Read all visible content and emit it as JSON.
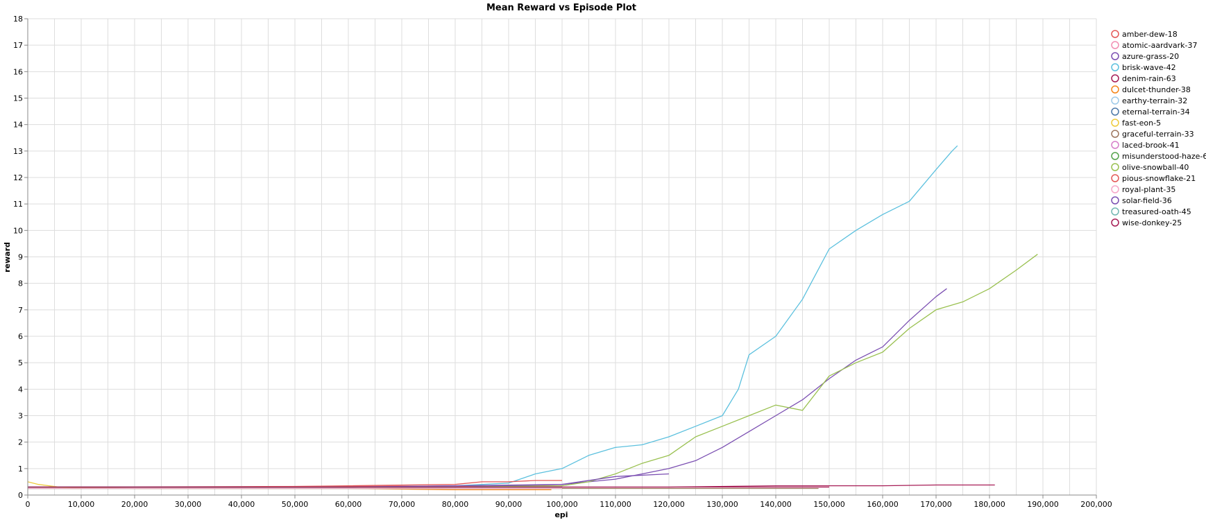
{
  "chart_data": {
    "type": "line",
    "title": "Mean Reward vs Episode Plot",
    "xlabel": "epi",
    "ylabel": "reward",
    "xlim": [
      0,
      200000
    ],
    "ylim": [
      0,
      18
    ],
    "x_ticks": [
      0,
      10000,
      20000,
      30000,
      40000,
      50000,
      60000,
      70000,
      80000,
      90000,
      100000,
      110000,
      120000,
      130000,
      140000,
      150000,
      160000,
      170000,
      180000,
      190000,
      200000
    ],
    "x_tick_labels": [
      "0",
      "10,000",
      "20,000",
      "30,000",
      "40,000",
      "50,000",
      "60,000",
      "70,000",
      "80,000",
      "90,000",
      "100,000",
      "110,000",
      "120,000",
      "130,000",
      "140,000",
      "150,000",
      "160,000",
      "170,000",
      "180,000",
      "190,000",
      "200,000"
    ],
    "y_ticks": [
      0,
      1,
      2,
      3,
      4,
      5,
      6,
      7,
      8,
      9,
      10,
      11,
      12,
      13,
      14,
      15,
      16,
      17,
      18
    ],
    "y_tick_labels": [
      "0",
      "1",
      "2",
      "3",
      "4",
      "5",
      "6",
      "7",
      "8",
      "9",
      "10",
      "11",
      "12",
      "13",
      "14",
      "15",
      "16",
      "17",
      "18"
    ],
    "grid": true,
    "legend_position": "right",
    "series": [
      {
        "name": "amber-dew-18",
        "color": "#e45756",
        "x": [
          0,
          100000
        ],
        "y": [
          0.3,
          0.35
        ]
      },
      {
        "name": "atomic-aardvark-37",
        "color": "#f28eb2",
        "x": [
          0,
          20000
        ],
        "y": [
          0.3,
          0.3
        ]
      },
      {
        "name": "azure-grass-20",
        "color": "#7b4fb2",
        "x": [
          0,
          20000,
          40000,
          60000,
          80000,
          90000,
          100000,
          105000,
          110000,
          115000,
          120000,
          125000,
          130000,
          135000,
          140000,
          145000,
          150000,
          155000,
          160000,
          165000,
          170000,
          172000
        ],
        "y": [
          0.3,
          0.3,
          0.3,
          0.3,
          0.3,
          0.35,
          0.4,
          0.5,
          0.6,
          0.8,
          1.0,
          1.3,
          1.8,
          2.4,
          3.0,
          3.6,
          4.4,
          5.1,
          5.6,
          6.6,
          7.5,
          7.8
        ]
      },
      {
        "name": "brisk-wave-42",
        "color": "#5bc0de",
        "x": [
          0,
          20000,
          40000,
          60000,
          80000,
          90000,
          95000,
          100000,
          105000,
          110000,
          115000,
          120000,
          125000,
          130000,
          133000,
          135000,
          140000,
          145000,
          150000,
          155000,
          160000,
          165000,
          170000,
          173000,
          174000
        ],
        "y": [
          0.3,
          0.3,
          0.3,
          0.3,
          0.35,
          0.45,
          0.8,
          1.0,
          1.5,
          1.8,
          1.9,
          2.2,
          2.6,
          3.0,
          4.0,
          5.3,
          6.0,
          7.4,
          9.3,
          10.0,
          10.6,
          11.1,
          12.3,
          13.0,
          13.2
        ]
      },
      {
        "name": "denim-rain-63",
        "color": "#a61c55",
        "x": [
          0,
          20000,
          40000,
          60000,
          80000,
          100000,
          120000,
          140000,
          160000,
          170000,
          181000
        ],
        "y": [
          0.3,
          0.3,
          0.3,
          0.3,
          0.3,
          0.3,
          0.3,
          0.35,
          0.35,
          0.38,
          0.38
        ]
      },
      {
        "name": "dulcet-thunder-38",
        "color": "#f58518",
        "x": [
          0,
          20000,
          40000,
          60000,
          80000,
          98000
        ],
        "y": [
          0.3,
          0.25,
          0.25,
          0.25,
          0.2,
          0.2
        ]
      },
      {
        "name": "earthy-terrain-32",
        "color": "#9ecae9",
        "x": [
          0,
          20000,
          40000,
          60000,
          80000,
          100000
        ],
        "y": [
          0.25,
          0.25,
          0.25,
          0.25,
          0.25,
          0.25
        ]
      },
      {
        "name": "eternal-terrain-34",
        "color": "#4c78a8",
        "x": [
          0,
          20000,
          40000,
          60000,
          80000,
          100000
        ],
        "y": [
          0.3,
          0.3,
          0.3,
          0.3,
          0.3,
          0.3
        ]
      },
      {
        "name": "fast-eon-5",
        "color": "#eeca3b",
        "x": [
          0,
          2000,
          4000,
          6000,
          8000,
          10000
        ],
        "y": [
          0.5,
          0.4,
          0.35,
          0.3,
          0.25,
          0.25
        ]
      },
      {
        "name": "graceful-terrain-33",
        "color": "#9d755d",
        "x": [
          0,
          20000,
          40000,
          60000,
          80000,
          100000,
          120000,
          140000,
          148000
        ],
        "y": [
          0.25,
          0.25,
          0.25,
          0.25,
          0.25,
          0.25,
          0.25,
          0.25,
          0.25
        ]
      },
      {
        "name": "laced-brook-41",
        "color": "#d67ec9",
        "x": [
          0,
          20000,
          40000,
          60000,
          80000,
          100000
        ],
        "y": [
          0.3,
          0.3,
          0.3,
          0.3,
          0.3,
          0.3
        ]
      },
      {
        "name": "misunderstood-haze-62",
        "color": "#54a24b",
        "x": [
          0,
          20000,
          40000,
          60000,
          80000,
          100000
        ],
        "y": [
          0.25,
          0.25,
          0.25,
          0.25,
          0.25,
          0.25
        ]
      },
      {
        "name": "olive-snowball-40",
        "color": "#99c04f",
        "x": [
          0,
          20000,
          40000,
          60000,
          80000,
          100000,
          105000,
          110000,
          115000,
          120000,
          125000,
          130000,
          135000,
          140000,
          145000,
          150000,
          155000,
          160000,
          165000,
          170000,
          175000,
          180000,
          185000,
          189000
        ],
        "y": [
          0.3,
          0.3,
          0.3,
          0.3,
          0.3,
          0.35,
          0.5,
          0.8,
          1.2,
          1.5,
          2.2,
          2.6,
          3.0,
          3.4,
          3.2,
          4.5,
          5.0,
          5.4,
          6.3,
          7.0,
          7.3,
          7.8,
          8.5,
          9.1
        ]
      },
      {
        "name": "pious-snowflake-21",
        "color": "#e45756",
        "x": [
          0,
          20000,
          40000,
          60000,
          80000,
          85000,
          90000,
          95000,
          100000
        ],
        "y": [
          0.3,
          0.3,
          0.3,
          0.35,
          0.4,
          0.5,
          0.5,
          0.55,
          0.55
        ]
      },
      {
        "name": "royal-plant-35",
        "color": "#f6a6c8",
        "x": [
          0,
          20000,
          40000,
          60000,
          80000,
          100000
        ],
        "y": [
          0.25,
          0.25,
          0.25,
          0.25,
          0.25,
          0.25
        ]
      },
      {
        "name": "solar-field-36",
        "color": "#7b4fb2",
        "x": [
          0,
          20000,
          40000,
          60000,
          80000,
          100000,
          110000,
          120000
        ],
        "y": [
          0.3,
          0.3,
          0.3,
          0.3,
          0.35,
          0.4,
          0.7,
          0.8
        ]
      },
      {
        "name": "treasured-oath-45",
        "color": "#72b7b2",
        "x": [
          0,
          20000,
          40000,
          60000,
          80000,
          100000
        ],
        "y": [
          0.3,
          0.3,
          0.3,
          0.3,
          0.3,
          0.3
        ]
      },
      {
        "name": "wise-donkey-25",
        "color": "#a61c55",
        "x": [
          0,
          20000,
          40000,
          60000,
          80000,
          100000,
          120000,
          140000,
          150000
        ],
        "y": [
          0.3,
          0.3,
          0.3,
          0.3,
          0.3,
          0.3,
          0.3,
          0.3,
          0.3
        ]
      }
    ]
  }
}
